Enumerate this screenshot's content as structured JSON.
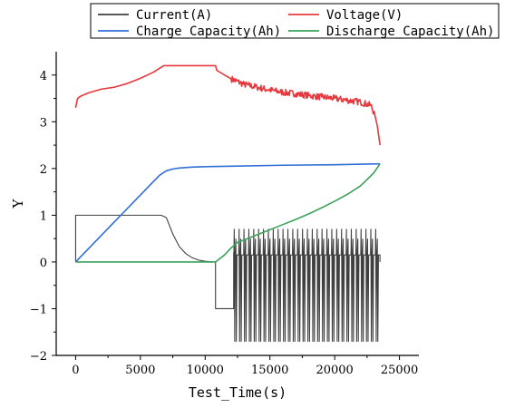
{
  "chart_data": {
    "type": "line",
    "xlabel": "Test_Time(s)",
    "ylabel": "Y",
    "xlim": [
      -1500,
      26500
    ],
    "ylim": [
      -2,
      4.5
    ],
    "xticks": [
      0,
      5000,
      10000,
      15000,
      20000,
      25000
    ],
    "yticks": [
      -2,
      -1,
      0,
      1,
      2,
      3,
      4
    ],
    "legend": {
      "placement": "top",
      "entries": [
        "Current(A)",
        "Voltage(V)",
        "Charge_Capacity(Ah)",
        "Discharge_Capacity(Ah)"
      ]
    },
    "series": [
      {
        "name": "Current(A)",
        "color": "#404040",
        "x": [
          0,
          0,
          6600,
          7000,
          7500,
          8000,
          8500,
          9000,
          9500,
          10000,
          10500,
          10500,
          10800,
          10800,
          12200,
          12200
        ],
        "y": [
          0,
          1,
          1,
          0.95,
          0.6,
          0.33,
          0.18,
          0.09,
          0.04,
          0.015,
          0.005,
          0,
          0,
          -1,
          -1,
          0.2
        ],
        "pulse_region": {
          "x_start": 12200,
          "x_end": 23500,
          "pulses": 30,
          "high": 0.7,
          "low": -1.7,
          "base": 0.15,
          "after_x": 23500,
          "after_y": 0
        }
      },
      {
        "name": "Voltage(V)",
        "color": "#e8383d",
        "x": [
          0,
          150,
          400,
          1000,
          2000,
          3000,
          4000,
          5000,
          6000,
          6800,
          10800,
          10900,
          11500,
          12000,
          13000,
          14000,
          15000,
          16000,
          17000,
          18000,
          19000,
          20000,
          21000,
          22000,
          22800,
          23100,
          23300,
          23500
        ],
        "y": [
          3.3,
          3.5,
          3.55,
          3.62,
          3.7,
          3.74,
          3.82,
          3.93,
          4.06,
          4.2,
          4.2,
          4.1,
          4.0,
          3.92,
          3.8,
          3.74,
          3.68,
          3.63,
          3.6,
          3.56,
          3.53,
          3.5,
          3.46,
          3.42,
          3.35,
          3.15,
          2.9,
          2.5
        ],
        "noise": {
          "x_start": 12000,
          "x_end": 23200,
          "amplitude": 0.07
        }
      },
      {
        "name": "Charge_Capacity(Ah)",
        "color": "#2f6fd6",
        "x": [
          0,
          6000,
          6500,
          7000,
          7500,
          8000,
          9000,
          10000,
          12000,
          16000,
          20000,
          23500
        ],
        "y": [
          0,
          1.72,
          1.86,
          1.95,
          1.99,
          2.01,
          2.03,
          2.04,
          2.05,
          2.07,
          2.08,
          2.1
        ]
      },
      {
        "name": "Discharge_Capacity(Ah)",
        "color": "#3ca25c",
        "x": [
          0,
          10800,
          11500,
          12000,
          12500,
          13000,
          14000,
          15000,
          16000,
          17000,
          18000,
          19000,
          20000,
          21000,
          22000,
          23000,
          23500
        ],
        "y": [
          0,
          0,
          0.15,
          0.3,
          0.42,
          0.47,
          0.58,
          0.69,
          0.8,
          0.91,
          1.03,
          1.16,
          1.3,
          1.45,
          1.63,
          1.9,
          2.1
        ]
      }
    ]
  }
}
